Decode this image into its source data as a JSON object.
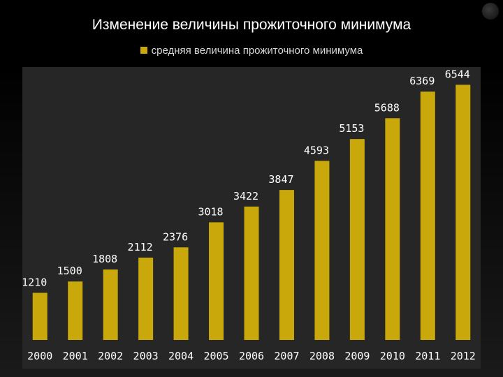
{
  "colors": {
    "bar": "#c8a80a",
    "plot_bg": "#262626",
    "text": "#ffffff",
    "title_bg": "#000000"
  },
  "chart_data": {
    "type": "bar",
    "title": "Изменение величины прожиточного минимума",
    "xlabel": "",
    "ylabel": "",
    "categories": [
      "2000",
      "2001",
      "2002",
      "2003",
      "2004",
      "2005",
      "2006",
      "2007",
      "2008",
      "2009",
      "2010",
      "2011",
      "2012"
    ],
    "series": [
      {
        "name": "средняя величина прожиточного минимума",
        "values": [
          1210,
          1500,
          1808,
          2112,
          2376,
          3018,
          3422,
          3847,
          4593,
          5153,
          5688,
          6369,
          6544
        ],
        "labels": [
          "1210",
          "1500",
          "1808",
          "2112",
          "2376",
          "3018",
          "3422",
          "3847",
          "4593",
          "5153",
          "5688",
          "6369",
          "6544"
        ]
      }
    ],
    "ylim": [
      0,
      7000
    ],
    "grid": false,
    "legend_position": "top"
  }
}
